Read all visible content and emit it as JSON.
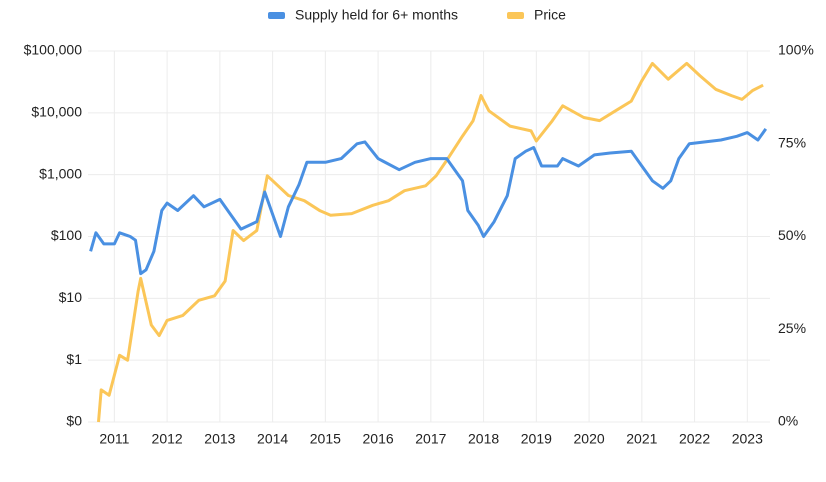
{
  "chart_data": {
    "type": "line",
    "xlim": [
      2010.5,
      2023.43
    ],
    "xticks": [
      2011,
      2012,
      2013,
      2014,
      2015,
      2016,
      2017,
      2018,
      2019,
      2020,
      2021,
      2022,
      2023
    ],
    "ylim": [
      0.1,
      100000
    ],
    "log_y": true,
    "yticks": [
      {
        "value": 0.1,
        "label": "$0"
      },
      {
        "value": 1,
        "label": "$1"
      },
      {
        "value": 10,
        "label": "$10"
      },
      {
        "value": 100,
        "label": "$100"
      },
      {
        "value": 1000,
        "label": "$1,000"
      },
      {
        "value": 10000,
        "label": "$10,000"
      },
      {
        "value": 100000,
        "label": "$100,000"
      }
    ],
    "y2lim": [
      0,
      100
    ],
    "y2ticks": [
      {
        "value": 0,
        "label": "0%"
      },
      {
        "value": 25,
        "label": "25%"
      },
      {
        "value": 50,
        "label": "50%"
      },
      {
        "value": 75,
        "label": "75%"
      },
      {
        "value": 100,
        "label": "100%"
      }
    ],
    "grid": true,
    "legend": "top",
    "series": [
      {
        "name": "Supply held for 6+ months",
        "color": "#4a90e2",
        "axis": "y2",
        "x": [
          2010.55,
          2010.65,
          2010.8,
          2011.0,
          2011.1,
          2011.3,
          2011.4,
          2011.5,
          2011.6,
          2011.75,
          2011.9,
          2012.0,
          2012.2,
          2012.5,
          2012.7,
          2013.0,
          2013.2,
          2013.4,
          2013.7,
          2013.85,
          2014.0,
          2014.15,
          2014.3,
          2014.5,
          2014.65,
          2015.0,
          2015.3,
          2015.6,
          2015.75,
          2016.0,
          2016.4,
          2016.7,
          2017.0,
          2017.3,
          2017.5,
          2017.6,
          2017.7,
          2017.9,
          2018.0,
          2018.2,
          2018.45,
          2018.6,
          2018.8,
          2018.95,
          2019.1,
          2019.4,
          2019.5,
          2019.8,
          2020.0,
          2020.1,
          2020.4,
          2020.8,
          2021.0,
          2021.2,
          2021.4,
          2021.55,
          2021.7,
          2021.9,
          2022.2,
          2022.5,
          2022.8,
          2023.0,
          2023.2,
          2023.35
        ],
        "values": [
          46,
          51,
          48,
          48,
          51,
          50,
          49,
          40,
          41,
          46,
          57,
          59,
          57,
          61,
          58,
          60,
          56,
          52,
          54,
          62,
          56,
          50,
          58,
          64,
          70,
          70,
          71,
          75,
          75.5,
          71,
          68,
          70,
          71,
          71,
          67,
          65,
          57,
          53,
          50,
          54,
          61,
          71,
          73,
          74,
          69,
          69,
          71,
          69,
          71,
          72,
          72.5,
          73,
          69,
          65,
          63,
          65,
          71,
          75,
          75.5,
          76,
          77,
          78,
          76,
          79
        ]
      },
      {
        "name": "Price",
        "color": "#fbc658",
        "x": [
          2010.7,
          2010.75,
          2010.9,
          2011.1,
          2011.25,
          2011.45,
          2011.5,
          2011.7,
          2011.85,
          2012.0,
          2012.3,
          2012.6,
          2012.9,
          2013.1,
          2013.25,
          2013.45,
          2013.7,
          2013.9,
          2014.0,
          2014.3,
          2014.6,
          2014.9,
          2015.1,
          2015.5,
          2015.9,
          2016.2,
          2016.5,
          2016.9,
          2017.1,
          2017.3,
          2017.6,
          2017.8,
          2017.95,
          2018.1,
          2018.5,
          2018.9,
          2019.0,
          2019.3,
          2019.5,
          2019.9,
          2020.2,
          2020.5,
          2020.8,
          2021.0,
          2021.2,
          2021.5,
          2021.85,
          2022.1,
          2022.4,
          2022.7,
          2022.9,
          2023.1,
          2023.3
        ],
        "values": [
          0.1,
          0.33,
          0.27,
          1.2,
          1,
          13,
          21,
          3.7,
          2.5,
          4.4,
          5.3,
          9.3,
          11,
          19,
          125,
          86,
          125,
          960,
          800,
          460,
          380,
          260,
          220,
          235,
          320,
          380,
          550,
          660,
          960,
          1700,
          4200,
          7400,
          19000,
          10800,
          6100,
          5100,
          3500,
          7400,
          13000,
          8400,
          7500,
          10800,
          15500,
          33000,
          63000,
          35000,
          63000,
          40000,
          24000,
          19000,
          16500,
          23000,
          28000
        ]
      }
    ]
  }
}
